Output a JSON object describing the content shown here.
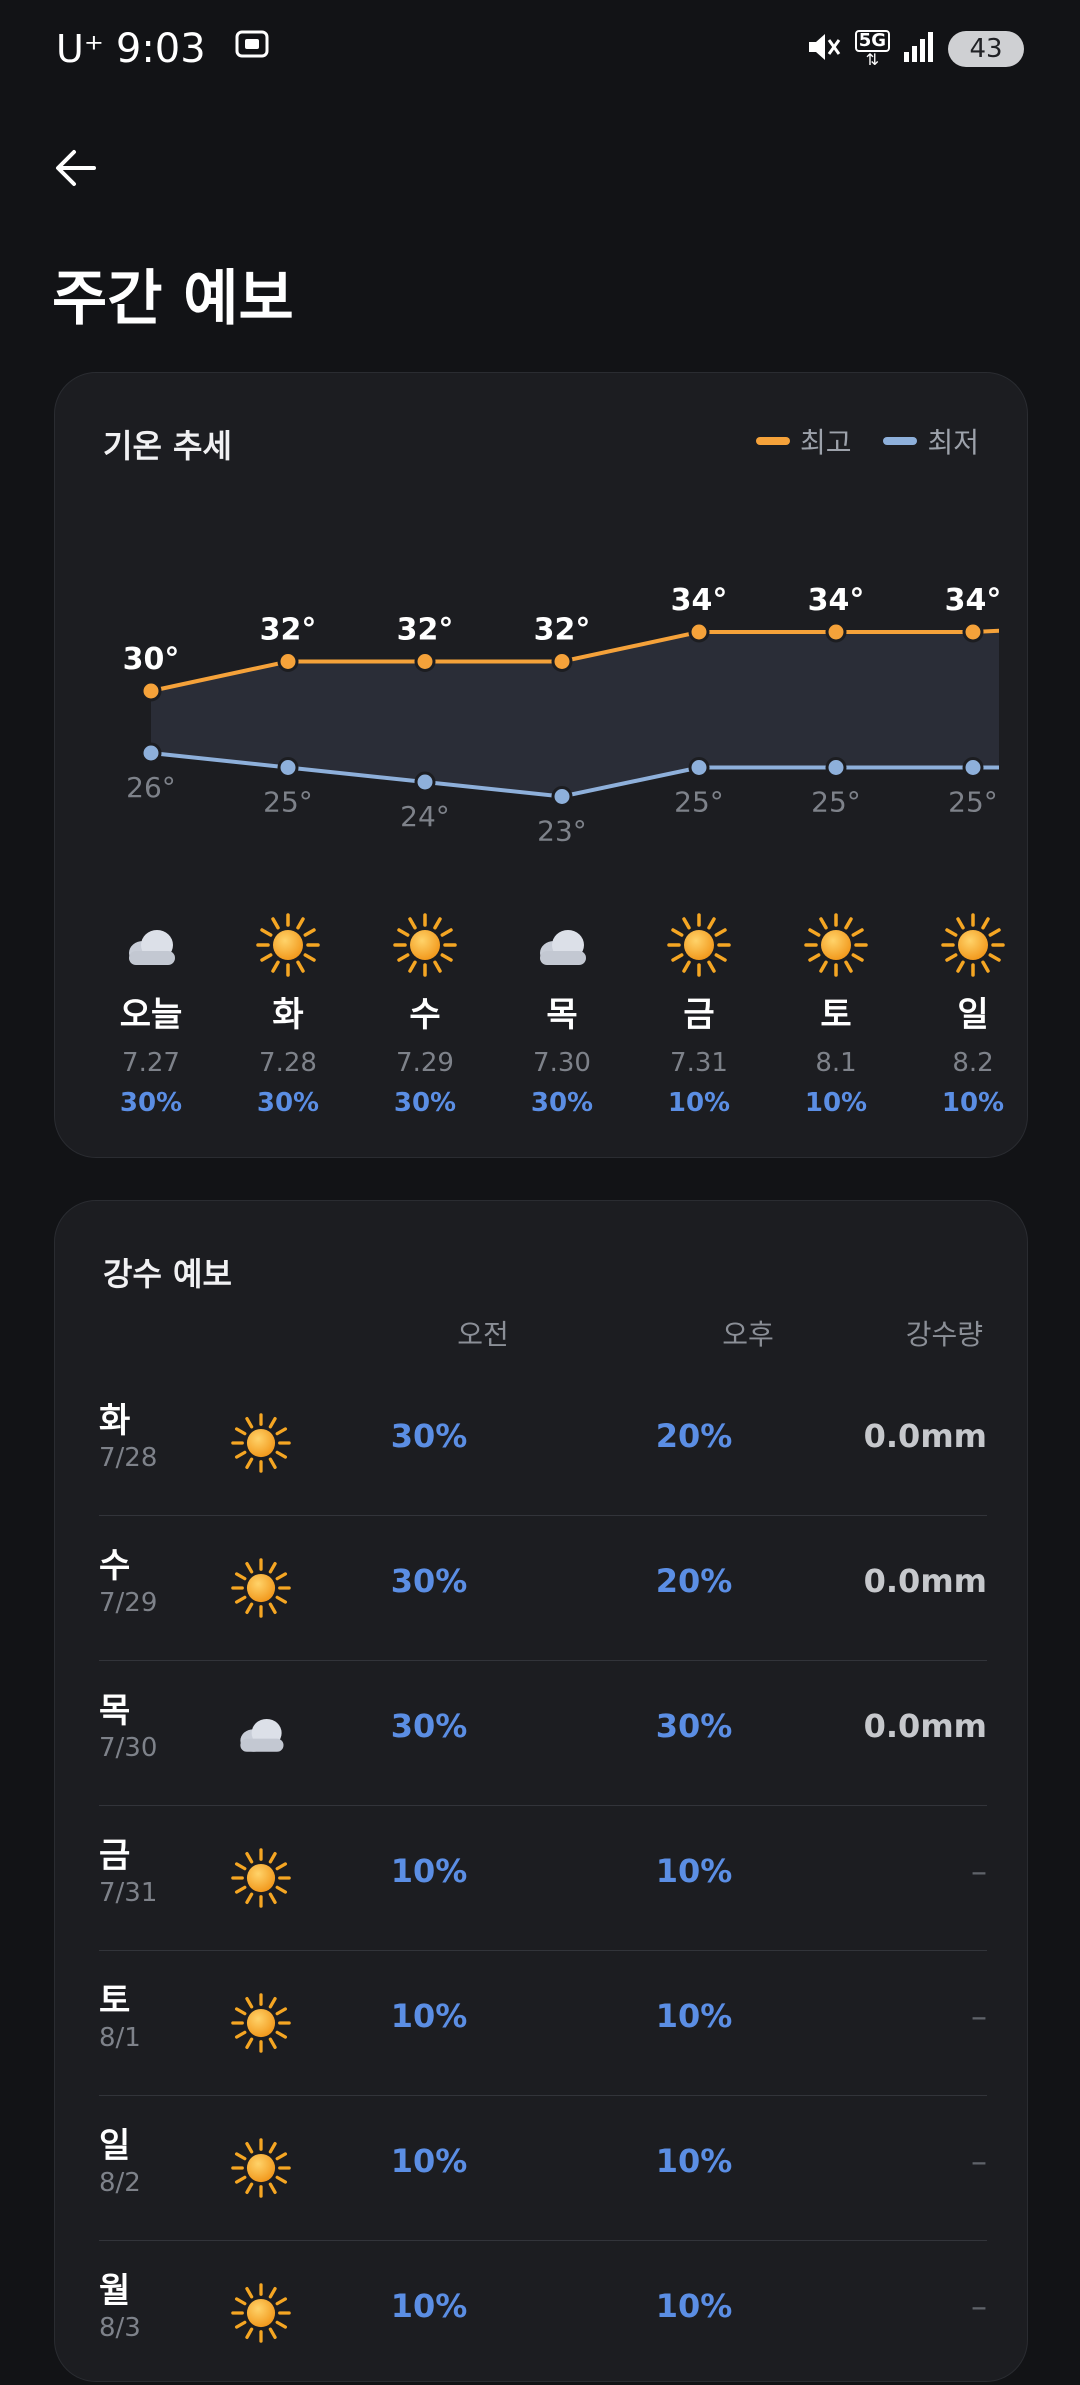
{
  "status_bar": {
    "carrier": "U⁺",
    "time": "9:03",
    "network": "5G",
    "battery": "43"
  },
  "header": {
    "title": "주간 예보"
  },
  "trend": {
    "title": "기온 추세",
    "legend": {
      "high_label": "최고",
      "low_label": "최저"
    },
    "colors": {
      "high": "#F5A23A",
      "low": "#8EB0DB",
      "fill": "#2A2D37"
    },
    "days": [
      {
        "name": "오늘",
        "date": "7.27",
        "prob": "30%",
        "icon": "cloud-icon"
      },
      {
        "name": "화",
        "date": "7.28",
        "prob": "30%",
        "icon": "sun-icon"
      },
      {
        "name": "수",
        "date": "7.29",
        "prob": "30%",
        "icon": "sun-icon"
      },
      {
        "name": "목",
        "date": "7.30",
        "prob": "30%",
        "icon": "cloud-icon"
      },
      {
        "name": "금",
        "date": "7.31",
        "prob": "10%",
        "icon": "sun-icon"
      },
      {
        "name": "토",
        "date": "8.1",
        "prob": "10%",
        "icon": "sun-icon"
      },
      {
        "name": "일",
        "date": "8.2",
        "prob": "10%",
        "icon": "sun-icon"
      }
    ]
  },
  "chart_data": {
    "type": "line",
    "title": "기온 추세",
    "categories": [
      "오늘",
      "화",
      "수",
      "목",
      "금",
      "토",
      "일"
    ],
    "series": [
      {
        "name": "최고",
        "values": [
          30,
          32,
          32,
          32,
          34,
          34,
          34
        ],
        "labels": [
          "30°",
          "32°",
          "32°",
          "32°",
          "34°",
          "34°",
          "34°"
        ]
      },
      {
        "name": "최저",
        "values": [
          26,
          25,
          24,
          23,
          25,
          25,
          25
        ],
        "labels": [
          "26°",
          "25°",
          "24°",
          "23°",
          "25°",
          "25°",
          "25°"
        ]
      }
    ]
  },
  "precip": {
    "title": "강수 예보",
    "headers": {
      "am": "오전",
      "pm": "오후",
      "amount": "강수량"
    },
    "rows": [
      {
        "day": "화",
        "date": "7/28",
        "icon": "sun-icon",
        "am": "30%",
        "pm": "20%",
        "amount": "0.0mm"
      },
      {
        "day": "수",
        "date": "7/29",
        "icon": "sun-icon",
        "am": "30%",
        "pm": "20%",
        "amount": "0.0mm"
      },
      {
        "day": "목",
        "date": "7/30",
        "icon": "cloud-icon",
        "am": "30%",
        "pm": "30%",
        "amount": "0.0mm"
      },
      {
        "day": "금",
        "date": "7/31",
        "icon": "sun-icon",
        "am": "10%",
        "pm": "10%",
        "amount": "–"
      },
      {
        "day": "토",
        "date": "8/1",
        "icon": "sun-icon",
        "am": "10%",
        "pm": "10%",
        "amount": "–"
      },
      {
        "day": "일",
        "date": "8/2",
        "icon": "sun-icon",
        "am": "10%",
        "pm": "10%",
        "amount": "–"
      },
      {
        "day": "월",
        "date": "8/3",
        "icon": "sun-icon",
        "am": "10%",
        "pm": "10%",
        "amount": "–"
      }
    ]
  }
}
